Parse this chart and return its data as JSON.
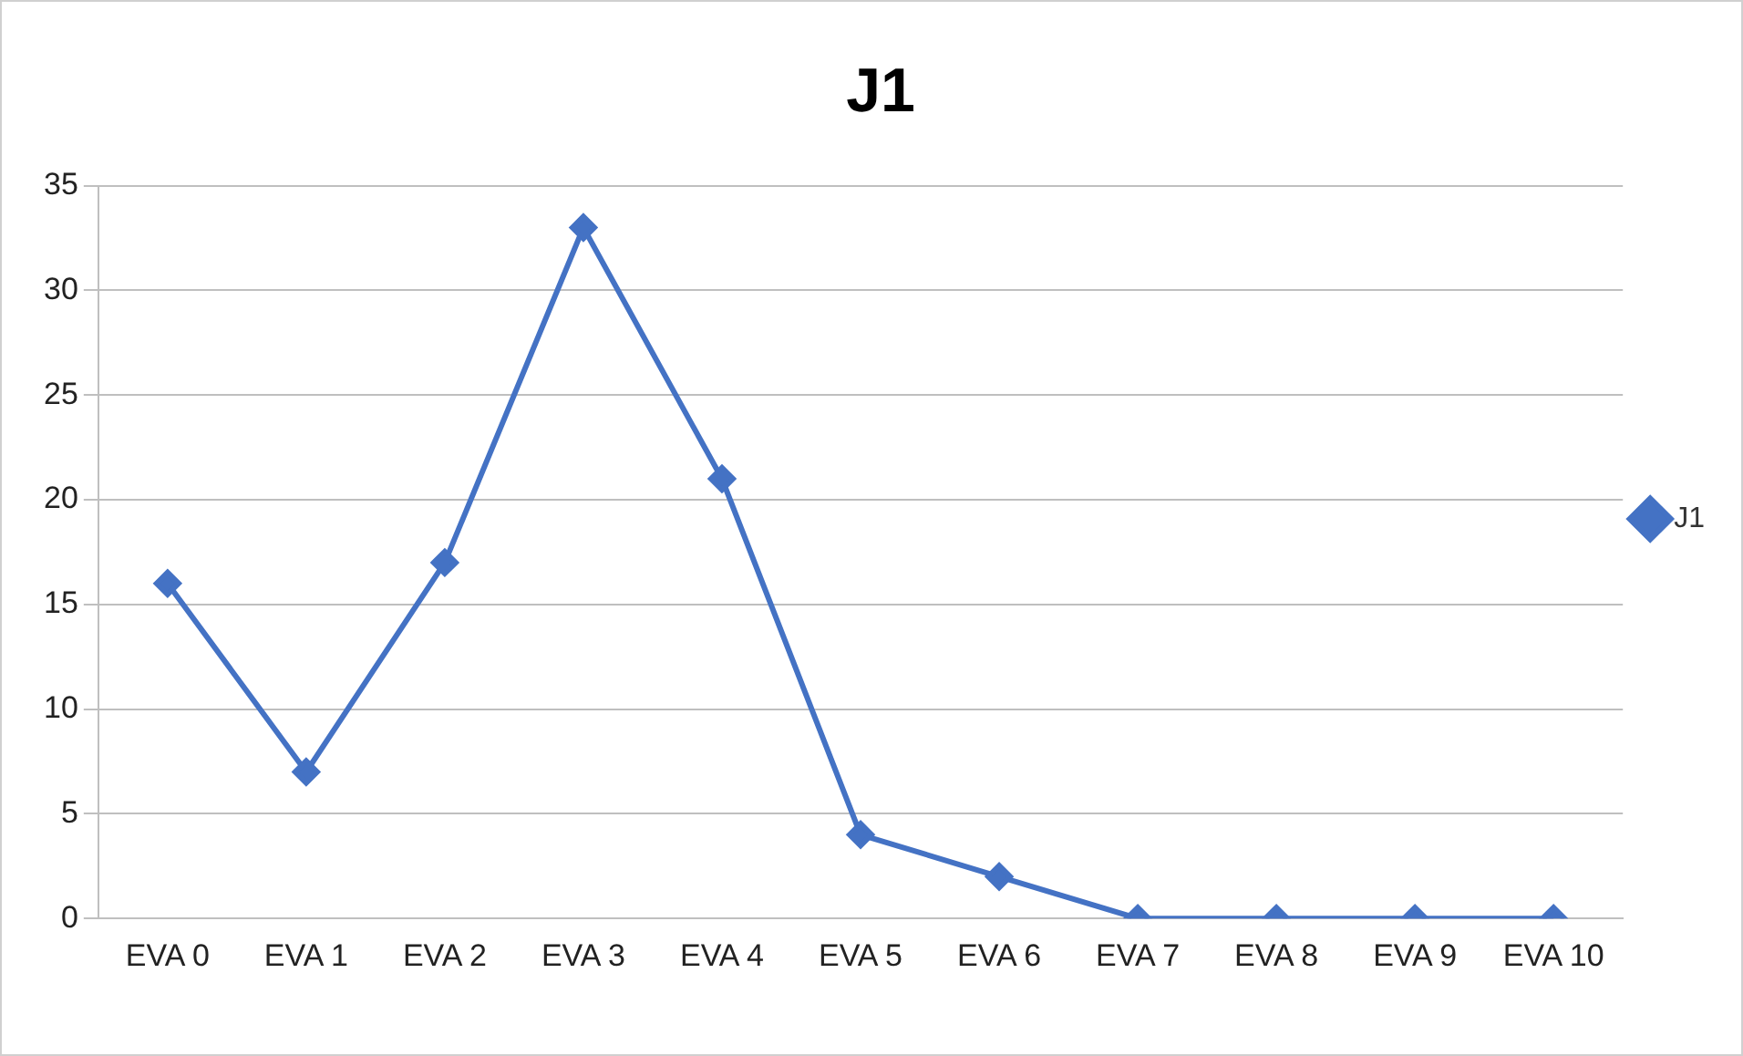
{
  "chart_data": {
    "type": "line",
    "title": "J1",
    "categories": [
      "EVA 0",
      "EVA 1",
      "EVA 2",
      "EVA 3",
      "EVA 4",
      "EVA 5",
      "EVA 6",
      "EVA 7",
      "EVA 8",
      "EVA 9",
      "EVA 10"
    ],
    "series": [
      {
        "name": "J1",
        "color": "#4472c4",
        "values": [
          16,
          7,
          17,
          33,
          21,
          4,
          2,
          0,
          0,
          0,
          0
        ]
      }
    ],
    "ylim": [
      0,
      35
    ],
    "yticks": [
      0,
      5,
      10,
      15,
      20,
      25,
      30,
      35
    ],
    "grid": "y",
    "legend": "right",
    "marker": "diamond",
    "line_style": "solid"
  }
}
